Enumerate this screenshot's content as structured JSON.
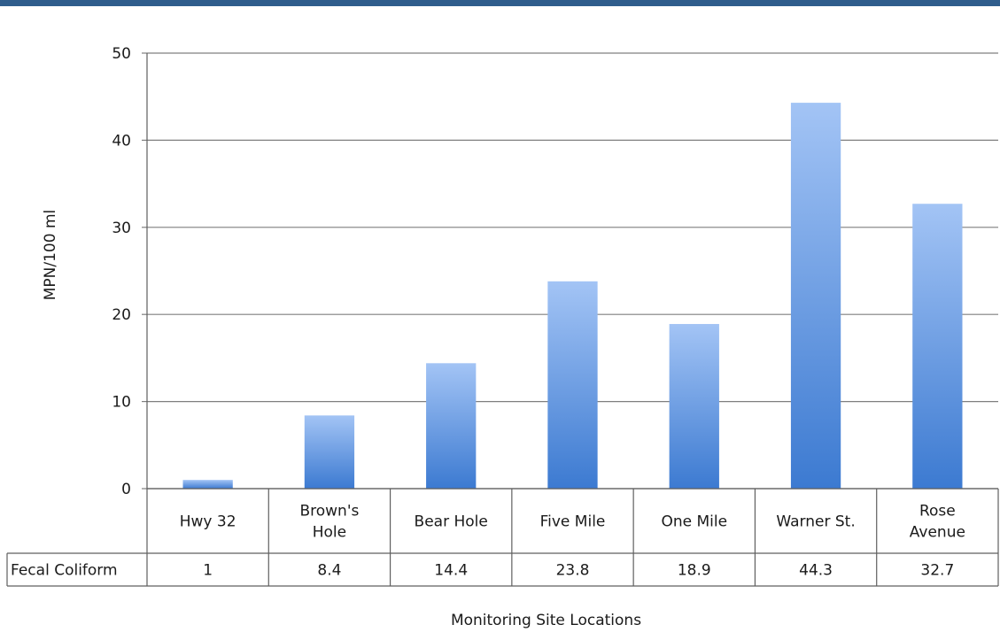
{
  "colors": {
    "top_band": "#2f5d8c",
    "bar_top": "#a3c4f5",
    "bar_bottom": "#3c7ad1",
    "grid": "#7f7f7f",
    "border": "#5f5f5f"
  },
  "chart_data": {
    "type": "bar",
    "categories": [
      [
        "Hwy 32"
      ],
      [
        "Brown's",
        "Hole"
      ],
      [
        "Bear Hole"
      ],
      [
        "Five Mile"
      ],
      [
        "One Mile"
      ],
      [
        "Warner St."
      ],
      [
        "Rose",
        "Avenue"
      ]
    ],
    "series": [
      {
        "name": "Fecal Coliform",
        "values": [
          1,
          8.4,
          14.4,
          23.8,
          18.9,
          44.3,
          32.7
        ],
        "value_labels": [
          "1",
          "8.4",
          "14.4",
          "23.8",
          "18.9",
          "44.3",
          "32.7"
        ]
      }
    ],
    "title": "",
    "xlabel": "Monitoring Site Locations",
    "ylabel": "MPN/100 ml",
    "ylim": [
      0,
      50
    ],
    "yticks": [
      0,
      10,
      20,
      30,
      40,
      50
    ],
    "grid": true,
    "legend": "none",
    "data_table": true
  }
}
